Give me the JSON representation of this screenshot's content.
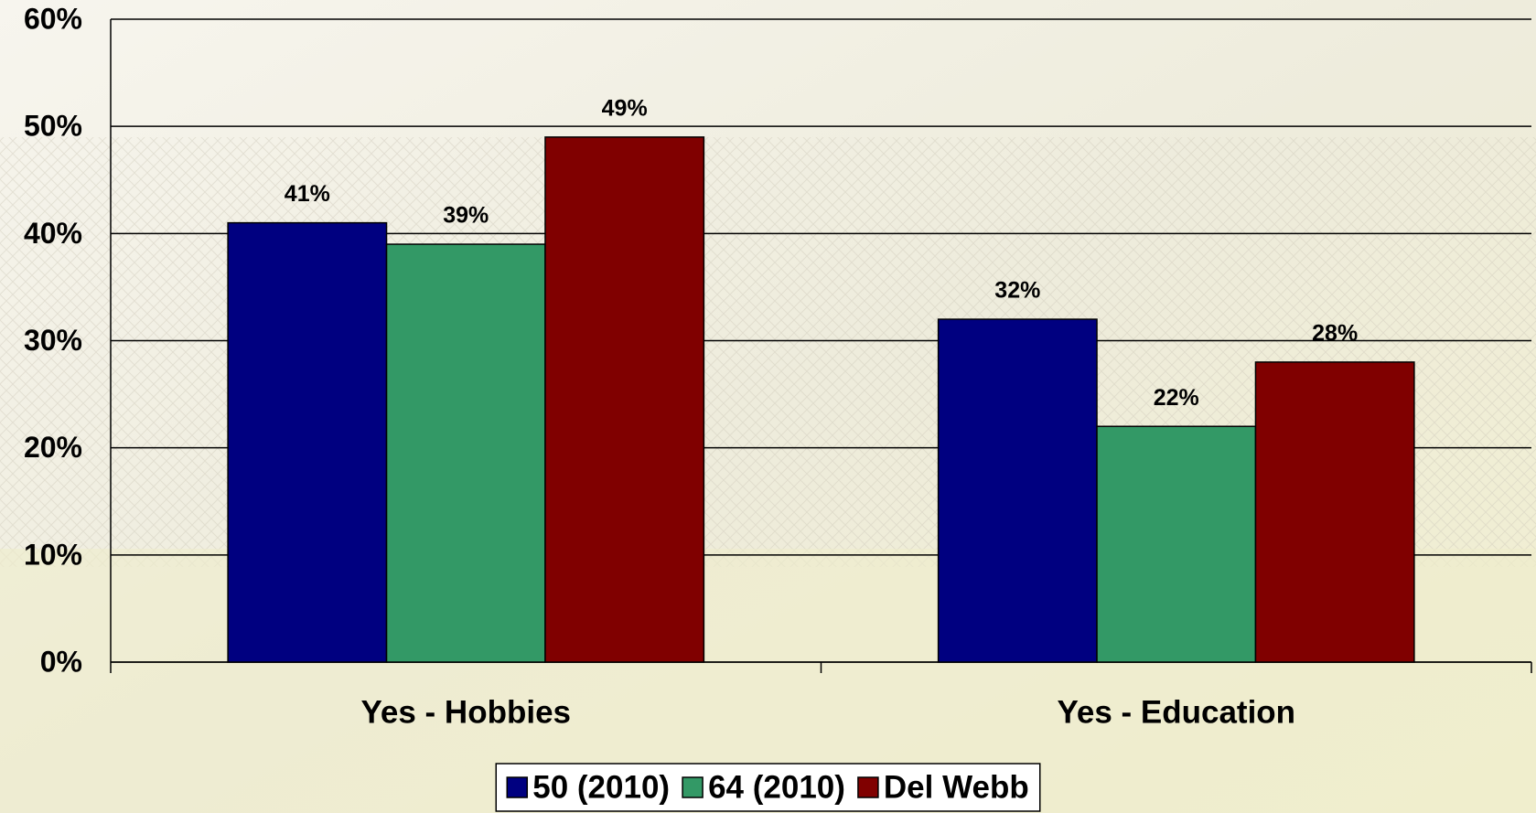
{
  "chart_data": {
    "type": "bar",
    "categories": [
      "Yes - Hobbies",
      "Yes - Education"
    ],
    "series": [
      {
        "name": "50 (2010)",
        "color": "#000080",
        "values": [
          41,
          32
        ],
        "value_labels": [
          "41%",
          "32%"
        ]
      },
      {
        "name": "64 (2010)",
        "color": "#339966",
        "values": [
          39,
          22
        ],
        "value_labels": [
          "39%",
          "22%"
        ]
      },
      {
        "name": "Del Webb",
        "color": "#800000",
        "values": [
          49,
          28
        ],
        "value_labels": [
          "49%",
          "28%"
        ]
      }
    ],
    "ylim": [
      0,
      60
    ],
    "yticks": [
      {
        "value": 0,
        "label": "0%"
      },
      {
        "value": 10,
        "label": "10%"
      },
      {
        "value": 20,
        "label": "20%"
      },
      {
        "value": 30,
        "label": "30%"
      },
      {
        "value": 40,
        "label": "40%"
      },
      {
        "value": 50,
        "label": "50%"
      },
      {
        "value": 60,
        "label": "60%"
      }
    ],
    "grid": true,
    "legend": "bottom"
  }
}
